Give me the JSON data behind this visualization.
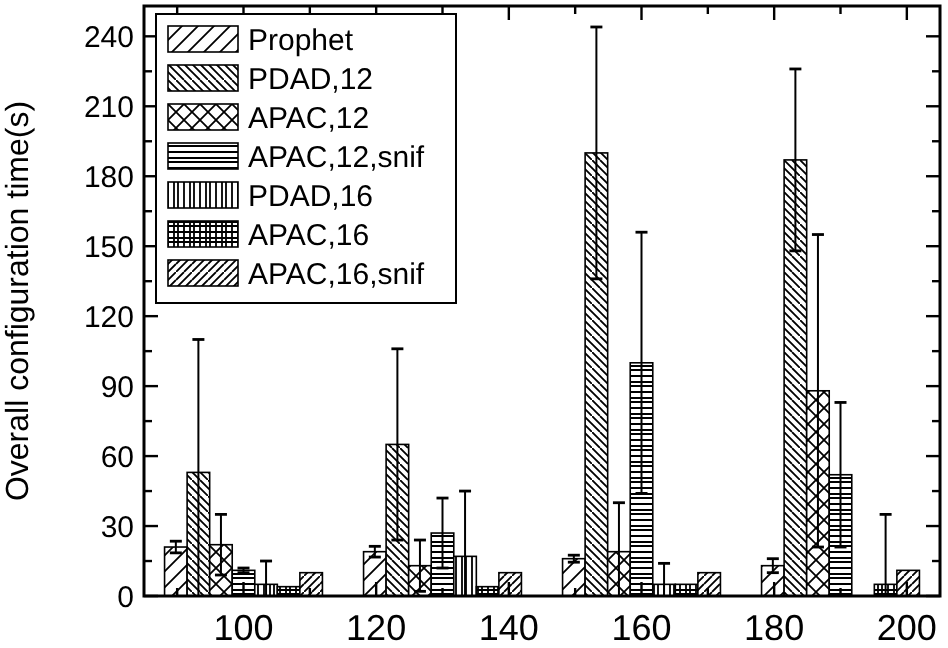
{
  "chart_data": {
    "type": "bar",
    "ylabel": "Overall configuration time(s)",
    "x": [
      100,
      130,
      160,
      190
    ],
    "xlim": [
      85,
      205
    ],
    "ylim": [
      0,
      253
    ],
    "xticks": [
      {
        "value": 90,
        "label": null
      },
      100,
      {
        "value": 110,
        "label": null
      },
      120,
      {
        "value": 130,
        "label": null
      },
      140,
      {
        "value": 150,
        "label": null
      },
      160,
      {
        "value": 170,
        "label": null
      },
      180,
      {
        "value": 190,
        "label": null
      },
      200
    ],
    "yticks": [
      0,
      {
        "value": 15,
        "label": null
      },
      30,
      {
        "value": 45,
        "label": null
      },
      60,
      {
        "value": 75,
        "label": null
      },
      90,
      {
        "value": 105,
        "label": null
      },
      120,
      {
        "value": 135,
        "label": null
      },
      150,
      {
        "value": 165,
        "label": null
      },
      180,
      {
        "value": 195,
        "label": null
      },
      210,
      {
        "value": 225,
        "label": null
      },
      240
    ],
    "legend": "top left",
    "grid": false,
    "series": [
      {
        "name": "Prophet",
        "color": "#000000",
        "values": [
          21,
          19,
          16,
          13
        ],
        "errors": [
          2.5,
          2.3,
          1.5,
          3
        ]
      },
      {
        "name": "PDAD,12",
        "color": "#000000",
        "values": [
          53,
          65,
          190,
          187
        ],
        "errors": [
          57,
          41,
          54,
          39
        ]
      },
      {
        "name": "APAC,12",
        "color": "#000000",
        "values": [
          22,
          13,
          19,
          88
        ],
        "errors": [
          13,
          11,
          21,
          67
        ]
      },
      {
        "name": "APAC,12,snif",
        "color": "#000000",
        "values": [
          11,
          27,
          100,
          52
        ],
        "errors": [
          1,
          15,
          56,
          31
        ]
      },
      {
        "name": "PDAD,16",
        "color": "#000000",
        "values": [
          5,
          17,
          5,
          null
        ],
        "errors": [
          10,
          28,
          9,
          null
        ]
      },
      {
        "name": "APAC,16",
        "color": "#000000",
        "values": [
          4,
          4,
          5,
          5
        ],
        "errors": [
          null,
          null,
          null,
          30
        ]
      },
      {
        "name": "APAC,16,snif",
        "color": "#000000",
        "values": [
          10,
          10,
          10,
          11
        ],
        "errors": [
          null,
          null,
          null,
          null
        ]
      }
    ]
  }
}
